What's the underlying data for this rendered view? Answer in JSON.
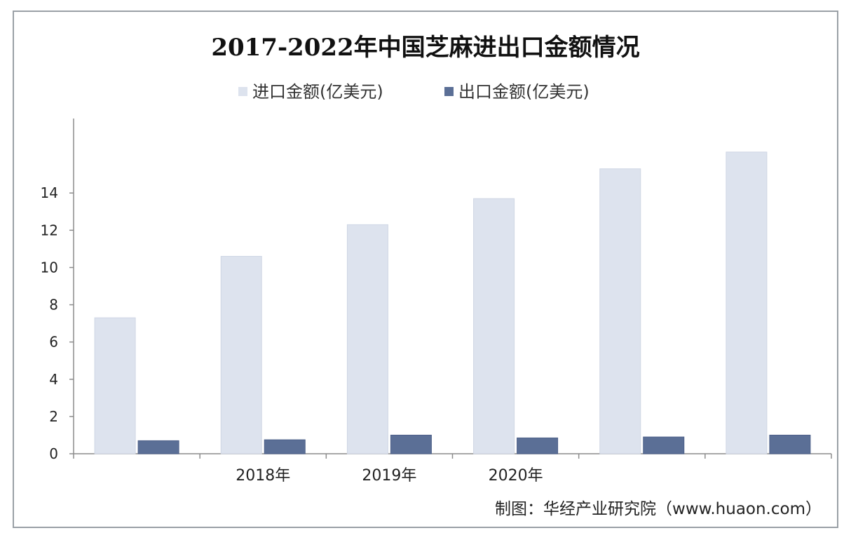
{
  "chart_data": {
    "type": "bar",
    "title": "2017-2022年中国芝麻进出口金额情况",
    "categories": [
      "",
      "2018年",
      "2019年",
      "2020年",
      "",
      ""
    ],
    "series": [
      {
        "name": "进口金额(亿美元)",
        "values": [
          7.3,
          10.6,
          12.3,
          13.7,
          15.3,
          16.2
        ],
        "color": "#dde3ee"
      },
      {
        "name": "出口金额(亿美元)",
        "values": [
          0.7,
          0.75,
          1.0,
          0.85,
          0.9,
          1.0
        ],
        "color": "#5b6f96"
      }
    ],
    "ylim": [
      0,
      18
    ],
    "yticks": [
      0,
      2,
      4,
      6,
      8,
      10,
      12,
      14
    ],
    "legend_position": "top",
    "grid": false,
    "xlabel": "",
    "ylabel": ""
  },
  "credit": "制图：华经产业研究院（www.huaon.com）"
}
